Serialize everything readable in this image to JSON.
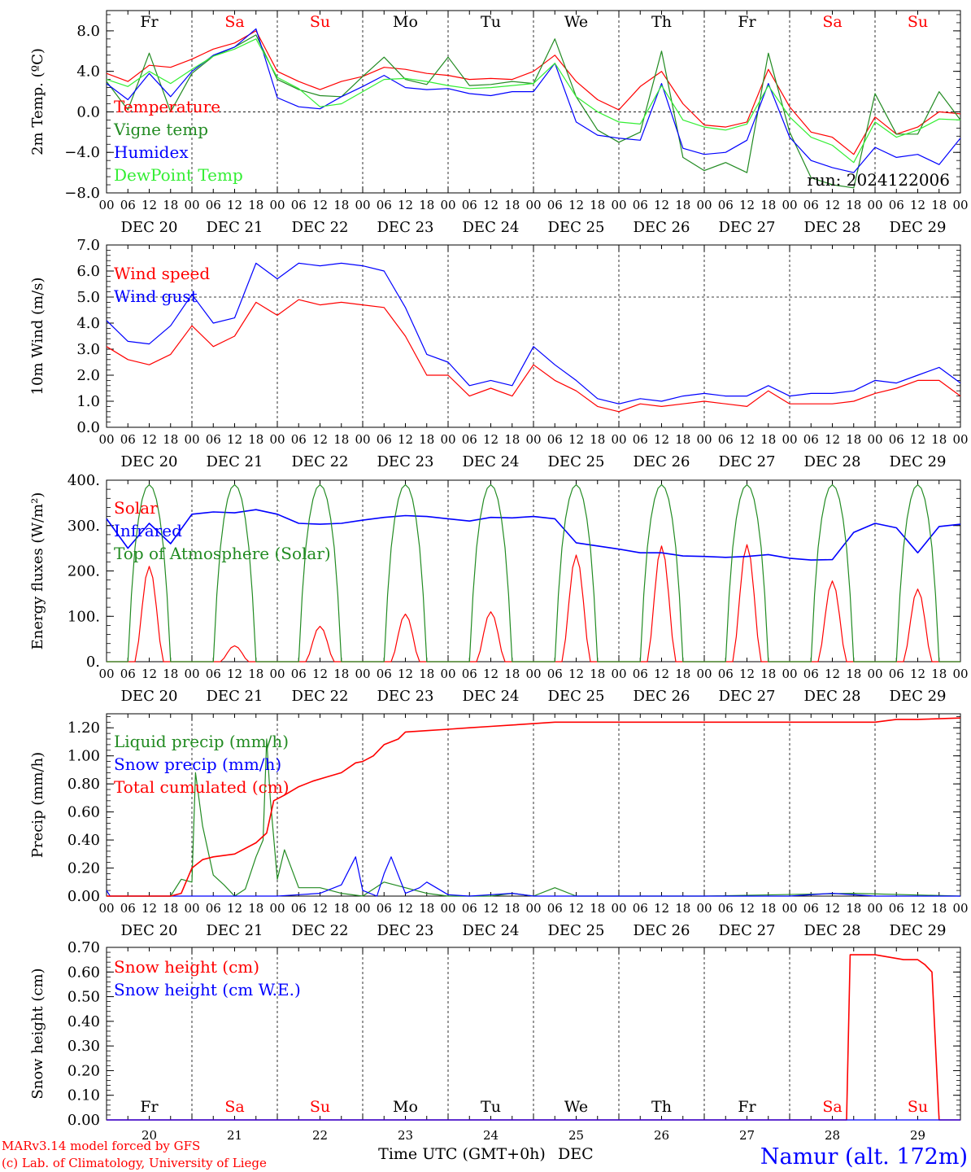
{
  "footer": {
    "model_line": "MARv3.14 model forced by GFS",
    "lab_line": "(c) Lab. of Climatology, University of Liege",
    "xaxis_title": "Time UTC (GMT+0h)",
    "month": "DEC",
    "station": "Namur (alt. 172m)"
  },
  "run_label": "run: 2024122006",
  "colors": {
    "red": "#ff0000",
    "green": "#228b22",
    "blue": "#0000ff",
    "lightgreen": "#33ee33",
    "weekend": "#ff0000"
  },
  "chart_data": [
    {
      "type": "line",
      "ylabel": "2m Temp. (ºC)",
      "ylim": [
        -8,
        10
      ],
      "yticks": [
        "8.0",
        "4.0",
        "0.0",
        "−4.0",
        "−8.0"
      ],
      "x_hours_from_dec20_00utc": [
        0,
        6,
        12,
        18,
        24,
        30,
        36,
        42,
        48,
        54,
        60,
        66,
        72,
        78,
        84,
        90,
        96,
        102,
        108,
        114,
        120,
        126,
        132,
        138,
        144,
        150,
        156,
        162,
        168,
        174,
        180,
        186,
        192,
        198,
        204,
        210,
        216,
        222,
        228,
        234,
        240
      ],
      "series": [
        {
          "name": "Temperature",
          "color": "red",
          "values": [
            3.8,
            3.0,
            4.6,
            4.4,
            5.2,
            6.2,
            6.8,
            8.0,
            4.0,
            3.0,
            2.2,
            3.0,
            3.5,
            4.4,
            4.2,
            3.8,
            3.6,
            3.2,
            3.3,
            3.2,
            4.0,
            5.6,
            3.0,
            1.2,
            0.2,
            2.5,
            4.0,
            0.8,
            -1.3,
            -1.5,
            -1.0,
            4.2,
            0.5,
            -2.0,
            -2.5,
            -4.2,
            -0.5,
            -2.2,
            -1.5,
            0.0,
            -0.2
          ]
        },
        {
          "name": "Vigne temp",
          "color": "green",
          "values": [
            3.0,
            0.2,
            5.8,
            0.0,
            3.8,
            5.5,
            6.4,
            7.6,
            3.2,
            2.2,
            1.6,
            1.5,
            3.5,
            5.4,
            3.2,
            2.7,
            5.4,
            2.6,
            2.7,
            3.0,
            2.8,
            7.2,
            1.5,
            -1.8,
            -3.0,
            -2.0,
            6.0,
            -4.5,
            -5.8,
            -5.0,
            -6.0,
            5.8,
            -2.0,
            -6.5,
            -7.2,
            -7.5,
            1.8,
            -2.2,
            -2.2,
            2.0,
            -0.8
          ]
        },
        {
          "name": "Humidex",
          "color": "blue",
          "values": [
            2.8,
            1.2,
            3.8,
            1.5,
            4.0,
            5.6,
            6.4,
            8.2,
            1.4,
            0.5,
            0.3,
            1.5,
            2.5,
            3.6,
            2.4,
            2.2,
            2.3,
            1.8,
            1.6,
            2.0,
            2.0,
            4.8,
            -1.0,
            -2.3,
            -2.6,
            -2.8,
            2.8,
            -3.6,
            -4.2,
            -4.0,
            -2.8,
            2.8,
            -2.5,
            -4.8,
            -5.5,
            -6.0,
            -3.5,
            -4.5,
            -4.2,
            -5.2,
            -2.6
          ]
        },
        {
          "name": "DewPoint Temp",
          "color": "lightgreen",
          "values": [
            3.2,
            2.5,
            4.0,
            2.8,
            4.2,
            5.5,
            6.2,
            7.2,
            3.4,
            2.3,
            0.5,
            0.8,
            2.0,
            3.2,
            3.3,
            3.0,
            2.6,
            2.3,
            2.4,
            2.6,
            2.8,
            4.8,
            1.5,
            0.0,
            -1.0,
            -1.2,
            2.6,
            -0.8,
            -1.5,
            -1.8,
            -1.2,
            2.6,
            -0.5,
            -2.5,
            -3.3,
            -5.0,
            -1.0,
            -2.5,
            -1.8,
            -0.7,
            -0.8
          ]
        }
      ]
    },
    {
      "type": "line",
      "ylabel": "10m Wind (m/s)",
      "ylim": [
        0,
        7
      ],
      "yticks": [
        "7.0",
        "6.0",
        "5.0",
        "4.0",
        "3.0",
        "2.0",
        "1.0",
        "0.0"
      ],
      "x_hours_from_dec20_00utc": [
        0,
        6,
        12,
        18,
        24,
        30,
        36,
        42,
        48,
        54,
        60,
        66,
        72,
        78,
        84,
        90,
        96,
        102,
        108,
        114,
        120,
        126,
        132,
        138,
        144,
        150,
        156,
        162,
        168,
        174,
        180,
        186,
        192,
        198,
        204,
        210,
        216,
        222,
        228,
        234,
        240
      ],
      "series": [
        {
          "name": "Wind speed",
          "color": "red",
          "values": [
            3.1,
            2.6,
            2.4,
            2.8,
            3.9,
            3.1,
            3.5,
            4.8,
            4.3,
            4.9,
            4.7,
            4.8,
            4.7,
            4.6,
            3.5,
            2.0,
            2.0,
            1.2,
            1.5,
            1.2,
            2.4,
            1.8,
            1.4,
            0.8,
            0.6,
            0.9,
            0.8,
            0.9,
            1.0,
            0.9,
            0.8,
            1.4,
            0.9,
            0.9,
            0.9,
            1.0,
            1.3,
            1.5,
            1.8,
            1.8,
            1.2
          ]
        },
        {
          "name": "Wind gust",
          "color": "blue",
          "values": [
            4.1,
            3.3,
            3.2,
            3.9,
            5.1,
            4.0,
            4.2,
            6.3,
            5.7,
            6.3,
            6.2,
            6.3,
            6.2,
            6.0,
            4.6,
            2.8,
            2.5,
            1.6,
            1.8,
            1.6,
            3.1,
            2.4,
            1.8,
            1.1,
            0.9,
            1.1,
            1.0,
            1.2,
            1.3,
            1.2,
            1.2,
            1.6,
            1.2,
            1.3,
            1.3,
            1.4,
            1.8,
            1.7,
            2.0,
            2.3,
            1.7
          ]
        }
      ]
    },
    {
      "type": "line",
      "ylabel": "Energy fluxes (W/m²)",
      "ylim": [
        0,
        400
      ],
      "yticks": [
        "400.",
        "300.",
        "200.",
        "100.",
        "0."
      ],
      "series": [
        {
          "name": "Solar",
          "color": "red",
          "daily_peaks": [
            210,
            35,
            78,
            105,
            110,
            235,
            255,
            258,
            178,
            160
          ]
        },
        {
          "name": "Infrared",
          "color": "blue",
          "x_hours_from_dec20_00utc": [
            0,
            6,
            12,
            18,
            24,
            30,
            36,
            42,
            48,
            54,
            60,
            66,
            72,
            78,
            84,
            90,
            96,
            102,
            108,
            114,
            120,
            126,
            132,
            138,
            144,
            150,
            156,
            162,
            168,
            174,
            180,
            186,
            192,
            198,
            204,
            210,
            216,
            222,
            228,
            234,
            240
          ],
          "values": [
            315,
            250,
            305,
            260,
            325,
            330,
            328,
            335,
            325,
            305,
            303,
            305,
            312,
            318,
            322,
            320,
            315,
            310,
            318,
            317,
            320,
            315,
            262,
            255,
            248,
            240,
            240,
            233,
            232,
            230,
            232,
            236,
            228,
            224,
            225,
            285,
            305,
            295,
            240,
            298,
            303
          ]
        },
        {
          "name": "Top of Atmosphere (Solar)",
          "color": "green",
          "daily_peaks": [
            390,
            390,
            390,
            390,
            390,
            390,
            390,
            390,
            390,
            390
          ]
        }
      ]
    },
    {
      "type": "line",
      "ylabel": "Precip (mm/h)",
      "ylim": [
        0,
        1.3
      ],
      "yticks": [
        "1.20",
        "1.00",
        "0.80",
        "0.60",
        "0.40",
        "0.20",
        "0.00"
      ],
      "series": [
        {
          "name": "Liquid precip (mm/h)",
          "color": "green",
          "x_hours_from_dec20_00utc": [
            0,
            18,
            21,
            24,
            25,
            27,
            30,
            33,
            36,
            39,
            42,
            44,
            45,
            46,
            48,
            50,
            54,
            60,
            66,
            72,
            78,
            84,
            90,
            96,
            102,
            108,
            114,
            120,
            126,
            132,
            168,
            210,
            240
          ],
          "values": [
            0,
            0,
            0.12,
            0.1,
            0.88,
            0.5,
            0.15,
            0.08,
            0,
            0.05,
            0.28,
            0.4,
            1.12,
            0.7,
            0.12,
            0.33,
            0.06,
            0.06,
            0.02,
            0,
            0.1,
            0.06,
            0.02,
            0,
            0,
            0,
            0.02,
            0,
            0.06,
            0,
            0,
            0.02,
            0
          ]
        },
        {
          "name": "Snow precip (mm/h)",
          "color": "blue",
          "x_hours_from_dec20_00utc": [
            0,
            1,
            2,
            48,
            54,
            60,
            66,
            70,
            72,
            76,
            78,
            80,
            84,
            88,
            90,
            96,
            102,
            108,
            114,
            120,
            144,
            192,
            204,
            216,
            228,
            240
          ],
          "values": [
            0.04,
            0,
            0,
            0,
            0.01,
            0.02,
            0.08,
            0.28,
            0.04,
            0,
            0.16,
            0.28,
            0.02,
            0.06,
            0.1,
            0.01,
            0,
            0.01,
            0.02,
            0,
            0,
            0,
            0.02,
            0,
            0,
            0
          ]
        },
        {
          "name": "Total cumulated (cm)",
          "color": "red",
          "x_hours_from_dec20_00utc": [
            0,
            18,
            21,
            24,
            27,
            30,
            36,
            42,
            45,
            47,
            50,
            54,
            58,
            62,
            66,
            70,
            72,
            75,
            78,
            82,
            84,
            90,
            96,
            102,
            108,
            114,
            120,
            126,
            132,
            216,
            222,
            228,
            240
          ],
          "values": [
            0,
            0,
            0.02,
            0.2,
            0.26,
            0.28,
            0.3,
            0.38,
            0.45,
            0.68,
            0.72,
            0.78,
            0.82,
            0.85,
            0.88,
            0.95,
            0.96,
            1.0,
            1.08,
            1.12,
            1.17,
            1.18,
            1.19,
            1.2,
            1.21,
            1.22,
            1.23,
            1.24,
            1.24,
            1.24,
            1.26,
            1.26,
            1.27
          ]
        }
      ]
    },
    {
      "type": "line",
      "ylabel": "Snow height (cm)",
      "ylim": [
        0,
        0.7
      ],
      "yticks": [
        "0.70",
        "0.60",
        "0.50",
        "0.40",
        "0.30",
        "0.20",
        "0.10",
        "0.00"
      ],
      "series": [
        {
          "name": "Snow height (cm)",
          "color": "red",
          "x_hours_from_dec20_00utc": [
            0,
            208,
            209,
            216,
            224,
            228,
            230,
            232,
            234,
            240
          ],
          "values": [
            0,
            0,
            0.67,
            0.67,
            0.65,
            0.65,
            0.63,
            0.6,
            0,
            0
          ]
        },
        {
          "name": "Snow height (cm W.E.)",
          "color": "blue",
          "x_hours_from_dec20_00utc": [
            0,
            240
          ],
          "values": [
            0,
            0
          ]
        }
      ]
    }
  ],
  "x_axis": {
    "hour_ticks": [
      "00",
      "06",
      "12",
      "18"
    ],
    "final_tick": "00",
    "day_labels": [
      "DEC 20",
      "DEC 21",
      "DEC 22",
      "DEC 23",
      "DEC 24",
      "DEC 25",
      "DEC 26",
      "DEC 27",
      "DEC 28",
      "DEC 29"
    ],
    "weekdays": [
      "Fr",
      "Sa",
      "Su",
      "Mo",
      "Tu",
      "We",
      "Th",
      "Fr",
      "Sa",
      "Su"
    ],
    "weekend_flags": [
      false,
      true,
      true,
      false,
      false,
      false,
      false,
      false,
      true,
      true
    ],
    "bottom_day_numbers": [
      "20",
      "21",
      "22",
      "23",
      "24",
      "25",
      "26",
      "27",
      "28",
      "29"
    ]
  }
}
